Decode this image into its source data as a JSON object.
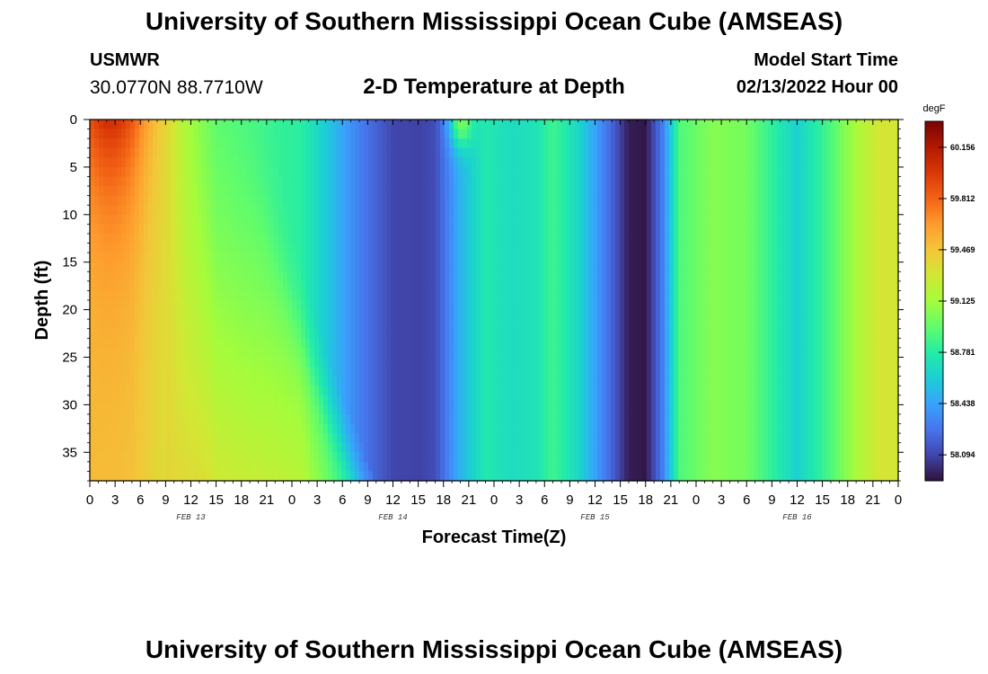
{
  "header": {
    "title": "University of Southern Mississippi Ocean Cube (AMSEAS)",
    "station": "USMWR",
    "coords": "30.0770N  88.7710W",
    "subtitle": "2-D Temperature at Depth",
    "model_start_label": "Model Start Time",
    "model_start_value": "02/13/2022 Hour 00"
  },
  "footer": {
    "title": "University of Southern Mississippi Ocean Cube (AMSEAS)"
  },
  "chart_data": {
    "type": "heatmap",
    "title": "2-D Temperature at Depth",
    "xlabel": "Forecast Time(Z)",
    "ylabel": "Depth (ft)",
    "x_range_hours": [
      0,
      96
    ],
    "y_range_ft": [
      0,
      38
    ],
    "x_tick_hours": [
      0,
      3,
      6,
      9,
      12,
      15,
      18,
      21,
      24,
      27,
      30,
      33,
      36,
      39,
      42,
      45,
      48,
      51,
      54,
      57,
      60,
      63,
      66,
      69,
      72,
      75,
      78,
      81,
      84,
      87,
      90,
      93,
      96
    ],
    "x_tick_labels": [
      "0",
      "3",
      "6",
      "9",
      "12",
      "15",
      "18",
      "21",
      "0",
      "3",
      "6",
      "9",
      "12",
      "15",
      "18",
      "21",
      "0",
      "3",
      "6",
      "9",
      "12",
      "15",
      "18",
      "21",
      "0",
      "3",
      "6",
      "9",
      "12",
      "15",
      "18",
      "21",
      "0"
    ],
    "y_ticks": [
      0,
      5,
      10,
      15,
      20,
      25,
      30,
      35
    ],
    "y_tick_labels": [
      "0",
      "5",
      "10",
      "15",
      "20",
      "25",
      "30",
      "35"
    ],
    "day_labels": [
      {
        "label": "FEB 13",
        "hour": 12
      },
      {
        "label": "FEB 14",
        "hour": 36
      },
      {
        "label": "FEB 15",
        "hour": 60
      },
      {
        "label": "FEB 16",
        "hour": 84
      }
    ],
    "colorbar": {
      "unit": "degF",
      "min": 57.92,
      "max": 60.33,
      "tick_values": [
        60.156,
        59.812,
        59.469,
        59.125,
        58.781,
        58.438,
        58.094
      ],
      "tick_labels": [
        "60.156",
        "59.812",
        "59.469",
        "59.125",
        "58.781",
        "58.438",
        "58.094"
      ],
      "stops": [
        "#30123b",
        "#4145ab",
        "#4675ed",
        "#39a2fc",
        "#1bcfd4",
        "#24eca6",
        "#61fc6c",
        "#a4fc3b",
        "#d1e834",
        "#f3c63a",
        "#fe9b2d",
        "#f36315",
        "#d93806",
        "#b11901",
        "#7a0403"
      ]
    },
    "model": "Temperature (degF) as a function of forecast hour t (0-96) and depth d in ft (0-38): T = base(t) + surface warm core near t=0-10 decreasing with depth + deep warm wedge near t=9-32 whose right edge slants from t=~20 at surface to t=~32 at 38 ft; base(t) is piecewise linear through the key points",
    "base_curve": {
      "hours": [
        0,
        5,
        9,
        12,
        15,
        18,
        21,
        25,
        28,
        32,
        36,
        39,
        41,
        44,
        47,
        50,
        53,
        55,
        58,
        60,
        62,
        64,
        66,
        68,
        70,
        74,
        78,
        82,
        84,
        88,
        91,
        94,
        96
      ],
      "degF": [
        59.5,
        59.48,
        59.35,
        59.08,
        58.9,
        58.86,
        58.84,
        58.8,
        58.6,
        58.3,
        58.1,
        58.08,
        58.12,
        58.5,
        58.76,
        58.68,
        58.72,
        58.86,
        58.66,
        58.44,
        58.2,
        57.96,
        57.94,
        58.3,
        58.9,
        59.05,
        59.0,
        58.75,
        58.62,
        58.9,
        59.15,
        59.32,
        59.3
      ]
    },
    "surface_feature": {
      "hour": 44,
      "depth_ft": 1.5,
      "degF": 59.0
    }
  },
  "axes": {
    "xlabel": "Forecast Time(Z)",
    "ylabel": "Depth (ft)",
    "colorbar_unit": "degF"
  }
}
